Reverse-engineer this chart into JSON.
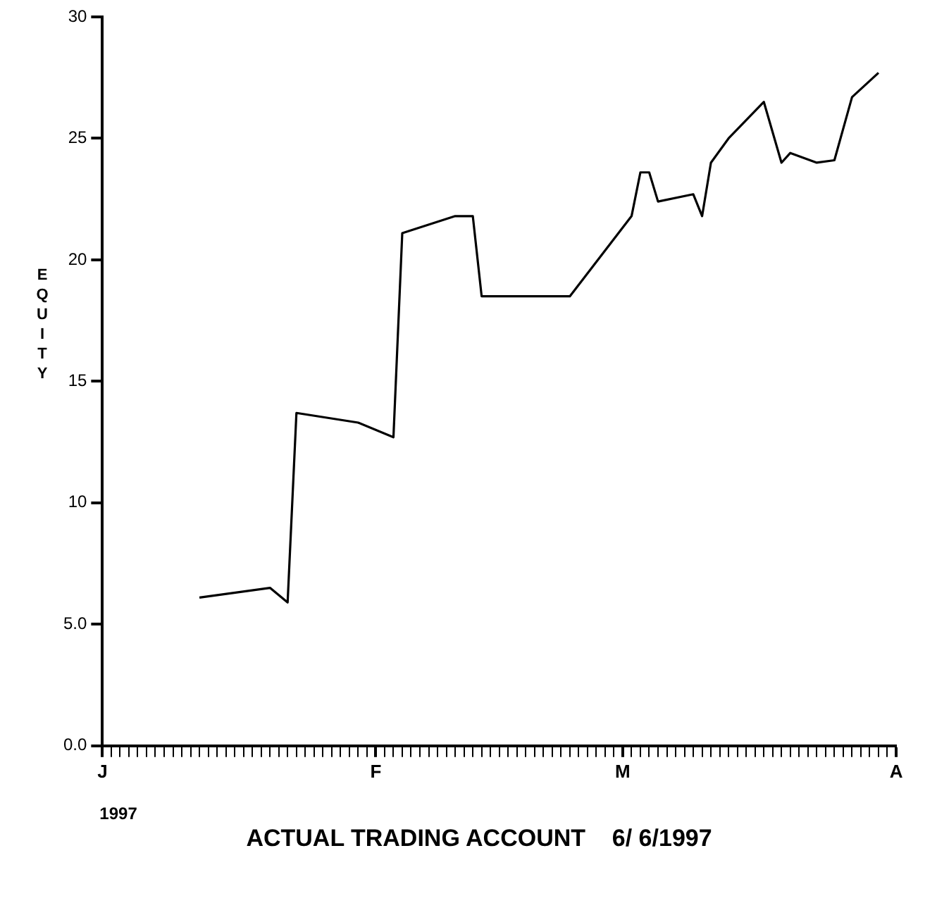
{
  "chart_data": {
    "type": "line",
    "title": "ACTUAL TRADING ACCOUNT    6/ 6/1997",
    "ylabel": "EQUITY",
    "annotations": [
      "1997"
    ],
    "categories": [
      "J",
      null,
      null,
      null,
      null,
      null,
      null,
      null,
      null,
      null,
      null,
      null,
      null,
      null,
      null,
      null,
      null,
      null,
      null,
      null,
      null,
      null,
      null,
      null,
      null,
      null,
      null,
      null,
      null,
      null,
      null,
      "F",
      null,
      null,
      null,
      null,
      null,
      null,
      null,
      null,
      null,
      null,
      null,
      null,
      null,
      null,
      null,
      null,
      null,
      null,
      null,
      null,
      null,
      null,
      null,
      null,
      null,
      null,
      null,
      "M",
      null,
      null,
      null,
      null,
      null,
      null,
      null,
      null,
      null,
      null,
      null,
      null,
      null,
      null,
      null,
      null,
      null,
      null,
      null,
      null,
      null,
      null,
      null,
      null,
      null,
      null,
      null,
      null,
      null,
      null,
      "A"
    ],
    "series": [
      {
        "color": "#000000",
        "values": [
          null,
          null,
          null,
          null,
          null,
          null,
          null,
          null,
          null,
          null,
          null,
          6.1,
          null,
          null,
          null,
          null,
          null,
          null,
          null,
          6.5,
          null,
          5.9,
          13.7,
          null,
          null,
          null,
          null,
          null,
          null,
          13.3,
          null,
          null,
          null,
          12.7,
          21.1,
          null,
          null,
          null,
          null,
          null,
          21.8,
          null,
          21.8,
          18.5,
          null,
          null,
          null,
          null,
          null,
          null,
          null,
          null,
          null,
          18.5,
          null,
          null,
          null,
          null,
          null,
          null,
          21.8,
          23.6,
          23.6,
          22.4,
          null,
          null,
          null,
          22.7,
          21.8,
          24.0,
          null,
          25.0,
          null,
          null,
          null,
          26.5,
          null,
          24.0,
          24.4,
          null,
          null,
          24.0,
          null,
          24.1,
          null,
          26.7,
          null,
          null,
          27.7,
          null,
          null
        ]
      }
    ],
    "ylim": [
      0,
      30
    ],
    "yticks": [
      {
        "value": 0,
        "label": "0.0"
      },
      {
        "value": 5,
        "label": "5.0"
      },
      10,
      15,
      20,
      25,
      30
    ],
    "grid": false,
    "legend": false,
    "marker": "none",
    "line_style": "solid"
  }
}
